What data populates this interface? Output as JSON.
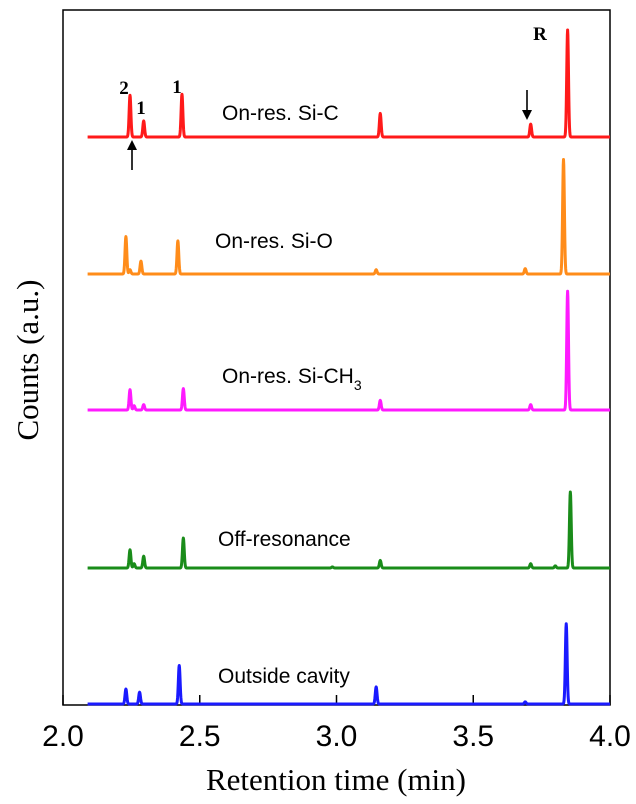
{
  "chart_data": {
    "type": "line",
    "title": "",
    "xlabel": "Retention time (min)",
    "ylabel": "Counts (a.u.)",
    "xlim": [
      2.0,
      4.0
    ],
    "xticks": [
      "2.0",
      "2.5",
      "3.0",
      "3.5",
      "4.0"
    ],
    "y_ticks_shown": false,
    "grid": false,
    "legend": "none",
    "series": [
      {
        "name": "On-res. Si-C",
        "label_main": "On-res. Si-C",
        "label_sub": "",
        "color": "#ff1a1a",
        "peaks": [
          {
            "x": 2.245,
            "h": 0.39
          },
          {
            "x": 2.295,
            "h": 0.15
          },
          {
            "x": 2.435,
            "h": 0.4
          },
          {
            "x": 3.16,
            "h": 0.22
          },
          {
            "x": 3.71,
            "h": 0.12
          },
          {
            "x": 3.845,
            "h": 1.0
          }
        ]
      },
      {
        "name": "On-res. Si-O",
        "label_main": "On-res. Si-O",
        "label_sub": "",
        "color": "#ff8c1a",
        "peaks": [
          {
            "x": 2.23,
            "h": 0.35
          },
          {
            "x": 2.245,
            "h": 0.04
          },
          {
            "x": 2.285,
            "h": 0.12
          },
          {
            "x": 2.42,
            "h": 0.31
          },
          {
            "x": 3.145,
            "h": 0.04
          },
          {
            "x": 3.69,
            "h": 0.05
          },
          {
            "x": 3.83,
            "h": 1.07
          }
        ]
      },
      {
        "name": "On-res. Si-CH3",
        "label_main": "On-res. Si-CH",
        "label_sub": "3",
        "color": "#ff1aff",
        "peaks": [
          {
            "x": 2.245,
            "h": 0.19
          },
          {
            "x": 2.26,
            "h": 0.04
          },
          {
            "x": 2.295,
            "h": 0.05
          },
          {
            "x": 2.44,
            "h": 0.2
          },
          {
            "x": 3.16,
            "h": 0.09
          },
          {
            "x": 3.71,
            "h": 0.05
          },
          {
            "x": 3.845,
            "h": 1.11
          }
        ]
      },
      {
        "name": "Off-resonance",
        "label_main": "Off-resonance",
        "label_sub": "",
        "color": "#1a8c1a",
        "peaks": [
          {
            "x": 2.245,
            "h": 0.17
          },
          {
            "x": 2.26,
            "h": 0.04
          },
          {
            "x": 2.295,
            "h": 0.11
          },
          {
            "x": 2.44,
            "h": 0.28
          },
          {
            "x": 2.985,
            "h": 0.01
          },
          {
            "x": 3.16,
            "h": 0.07
          },
          {
            "x": 3.71,
            "h": 0.04
          },
          {
            "x": 3.8,
            "h": 0.02
          },
          {
            "x": 3.855,
            "h": 0.71
          }
        ]
      },
      {
        "name": "Outside cavity",
        "label_main": "Outside cavity",
        "label_sub": "",
        "color": "#1a1aff",
        "peaks": [
          {
            "x": 2.23,
            "h": 0.14
          },
          {
            "x": 2.28,
            "h": 0.11
          },
          {
            "x": 2.425,
            "h": 0.36
          },
          {
            "x": 3.145,
            "h": 0.16
          },
          {
            "x": 3.69,
            "h": 0.02
          },
          {
            "x": 3.84,
            "h": 0.75
          }
        ]
      }
    ],
    "annotations": [
      {
        "text": "2",
        "x": 2.245,
        "series": "On-res. Si-C"
      },
      {
        "text": "1",
        "x": 2.295,
        "series": "On-res. Si-C"
      },
      {
        "text": "1",
        "x": 2.435,
        "series": "On-res. Si-C"
      },
      {
        "text": "R",
        "x": 3.845,
        "series": "On-res. Si-C"
      },
      {
        "text": "↑",
        "x": 2.27,
        "series": "On-res. Si-C"
      },
      {
        "text": "↓",
        "x": 3.71,
        "series": "On-res. Si-C"
      }
    ]
  }
}
